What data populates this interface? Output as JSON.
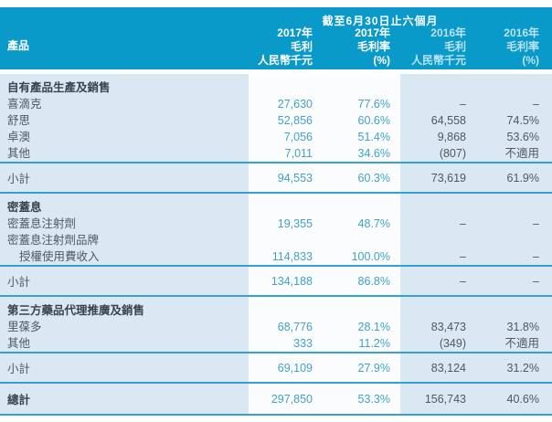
{
  "header": {
    "span_label": "截至6月30日止六個月",
    "product_label": "產品",
    "columns": [
      {
        "year": "2017年",
        "metric": "毛利",
        "unit": "人民幣千元"
      },
      {
        "year": "2017年",
        "metric": "毛利率",
        "unit": "(%)"
      },
      {
        "year": "2016年",
        "metric": "毛利",
        "unit": "人民幣千元"
      },
      {
        "year": "2016年",
        "metric": "毛利率",
        "unit": "(%)"
      }
    ]
  },
  "colors": {
    "header_bg": "#0a9aca",
    "body_bg": "#d9e8f2",
    "separator_line": "#35a0d2",
    "value_2017": "#42a2c8",
    "value_2016": "#4e5961"
  },
  "sections": [
    {
      "title": "自有產品生產及銷售",
      "rows": [
        {
          "label": "喜滴克",
          "gp2017": "27,630",
          "gpm2017": "77.6%",
          "gp2016": "–",
          "gpm2016": "–"
        },
        {
          "label": "舒思",
          "gp2017": "52,856",
          "gpm2017": "60.6%",
          "gp2016": "64,558",
          "gpm2016": "74.5%"
        },
        {
          "label": "卓澳",
          "gp2017": "7,056",
          "gpm2017": "51.4%",
          "gp2016": "9,868",
          "gpm2016": "53.6%"
        },
        {
          "label": "其他",
          "gp2017": "7,011",
          "gpm2017": "34.6%",
          "gp2016": "(807)",
          "gpm2016": "不適用"
        }
      ],
      "subtotal": {
        "label": "小計",
        "gp2017": "94,553",
        "gpm2017": "60.3%",
        "gp2016": "73,619",
        "gpm2016": "61.9%"
      }
    },
    {
      "title": "密蓋息",
      "rows": [
        {
          "label": "密蓋息注射劑",
          "gp2017": "19,355",
          "gpm2017": "48.7%",
          "gp2016": "–",
          "gpm2016": "–"
        },
        {
          "label": "密蓋息注射劑品牌",
          "gp2017": "",
          "gpm2017": "",
          "gp2016": "",
          "gpm2016": ""
        },
        {
          "label": "授權使用費收入",
          "gp2017": "114,833",
          "gpm2017": "100.0%",
          "gp2016": "–",
          "gpm2016": "–"
        }
      ],
      "subtotal": {
        "label": "小計",
        "gp2017": "134,188",
        "gpm2017": "86.8%",
        "gp2016": "–",
        "gpm2016": "–"
      }
    },
    {
      "title": "第三方藥品代理推廣及銷售",
      "rows": [
        {
          "label": "里葆多",
          "gp2017": "68,776",
          "gpm2017": "28.1%",
          "gp2016": "83,473",
          "gpm2016": "31.8%"
        },
        {
          "label": "其他",
          "gp2017": "333",
          "gpm2017": "11.2%",
          "gp2016": "(349)",
          "gpm2016": "不適用"
        }
      ],
      "subtotal": {
        "label": "小計",
        "gp2017": "69,109",
        "gpm2017": "27.9%",
        "gp2016": "83,124",
        "gpm2016": "31.2%"
      }
    }
  ],
  "total": {
    "label": "總計",
    "gp2017": "297,850",
    "gpm2017": "53.3%",
    "gp2016": "156,743",
    "gpm2016": "40.6%"
  }
}
